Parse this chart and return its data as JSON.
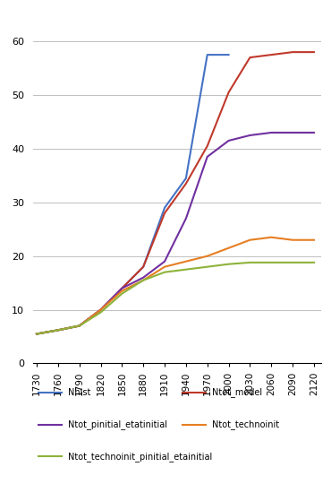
{
  "x_years": [
    1730,
    1760,
    1790,
    1820,
    1850,
    1880,
    1910,
    1940,
    1970,
    2000,
    2030,
    2060,
    2090,
    2120
  ],
  "Nhist": [
    5.5,
    6.2,
    7.0,
    10.0,
    14.0,
    18.0,
    29.0,
    34.5,
    57.5,
    57.5,
    null,
    null,
    null,
    null
  ],
  "Ntot_model": [
    5.5,
    6.2,
    7.0,
    10.0,
    14.0,
    18.0,
    28.0,
    33.5,
    40.5,
    50.5,
    57.0,
    57.5,
    58.0,
    58.0
  ],
  "Ntot_pinitial_etatinitial": [
    5.5,
    6.2,
    7.0,
    10.0,
    14.0,
    16.0,
    19.0,
    27.0,
    38.5,
    41.5,
    42.5,
    43.0,
    43.0,
    43.0
  ],
  "Ntot_technoinit": [
    5.5,
    6.2,
    7.0,
    10.0,
    13.5,
    15.5,
    18.0,
    19.0,
    20.0,
    21.5,
    23.0,
    23.5,
    23.0,
    23.0
  ],
  "Ntot_technoinit_pinitial_etainitial": [
    5.5,
    6.2,
    7.0,
    9.5,
    13.0,
    15.5,
    17.0,
    17.5,
    18.0,
    18.5,
    18.8,
    18.8,
    18.8,
    18.8
  ],
  "colors": {
    "Nhist": "#4472C4",
    "Ntot_model": "#C0392B",
    "Ntot_pinitial_etatinitial": "#7030A0",
    "Ntot_technoinit": "#E67E22",
    "Ntot_technoinit_pinitial_etainitial": "#8DB33A"
  },
  "ylim": [
    0,
    65
  ],
  "yticks": [
    0,
    10,
    20,
    30,
    40,
    50,
    60
  ],
  "background_color": "#FFFFFF",
  "grid_color": "#C0C0C0",
  "legend_labels": {
    "Nhist": "Nhist",
    "Ntot_model": "Ntot_model",
    "Ntot_pinitial_etatinitial": "Ntot_pinitial_etatinitial",
    "Ntot_technoinit": "Ntot_technoinit",
    "Ntot_technoinit_pinitial_etainitial": "Ntot_technoinit_pinitial_etainitial"
  },
  "legend_order": [
    "Nhist",
    "Ntot_model",
    "Ntot_pinitial_etatinitial",
    "Ntot_technoinit",
    "Ntot_technoinit_pinitial_etainitial"
  ]
}
